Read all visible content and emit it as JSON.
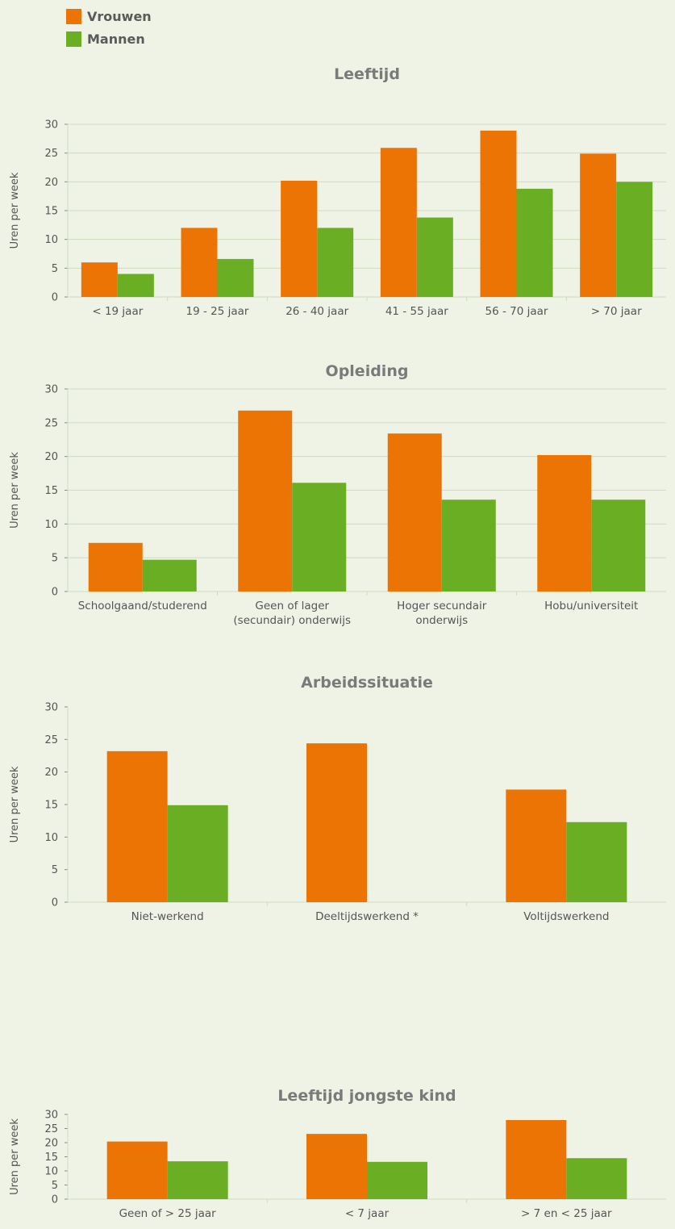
{
  "legend": {
    "items": [
      {
        "label": "Vrouwen",
        "color": "#ec7404"
      },
      {
        "label": "Mannen",
        "color": "#6aaf23"
      }
    ]
  },
  "colors": {
    "vrouwen": "#ec7404",
    "mannen": "#6aaf23",
    "grid": "#cfdcc0",
    "axis": "#8a8a8a"
  },
  "chart_data": [
    {
      "type": "bar",
      "title": "Leeftijd",
      "ylabel": "Uren per week",
      "ylim": [
        0,
        30
      ],
      "yticks": [
        0,
        5,
        10,
        15,
        20,
        25,
        30
      ],
      "grid": true,
      "categories": [
        [
          "< 19 jaar"
        ],
        [
          "19 - 25 jaar"
        ],
        [
          "26 - 40 jaar"
        ],
        [
          "41 - 55 jaar"
        ],
        [
          "56 - 70 jaar"
        ],
        [
          "> 70 jaar"
        ]
      ],
      "series": [
        {
          "name": "Vrouwen",
          "values": [
            6,
            12,
            20.2,
            25.9,
            28.9,
            24.9
          ]
        },
        {
          "name": "Mannen",
          "values": [
            4,
            6.6,
            12,
            13.8,
            18.8,
            20
          ]
        }
      ]
    },
    {
      "type": "bar",
      "title": "Opleiding",
      "ylabel": "Uren per week",
      "ylim": [
        0,
        30
      ],
      "yticks": [
        0,
        5,
        10,
        15,
        20,
        25,
        30
      ],
      "grid": true,
      "categories": [
        [
          "Schoolgaand/studerend"
        ],
        [
          "Geen of lager",
          "(secundair) onderwijs"
        ],
        [
          "Hoger secundair",
          "onderwijs"
        ],
        [
          "Hobu/universiteit"
        ]
      ],
      "series": [
        {
          "name": "Vrouwen",
          "values": [
            7.2,
            26.8,
            23.4,
            20.2
          ]
        },
        {
          "name": "Mannen",
          "values": [
            4.7,
            16.1,
            13.6,
            13.6
          ]
        }
      ]
    },
    {
      "type": "bar",
      "title": "Arbeidssituatie",
      "ylabel": "Uren per week",
      "ylim": [
        0,
        30
      ],
      "yticks": [
        0,
        5,
        10,
        15,
        20,
        25,
        30
      ],
      "grid": false,
      "categories": [
        [
          "Niet-werkend"
        ],
        [
          "Deeltijdswerkend *"
        ],
        [
          "Voltijdswerkend"
        ]
      ],
      "series": [
        {
          "name": "Vrouwen",
          "values": [
            23.2,
            24.4,
            17.3
          ]
        },
        {
          "name": "Mannen",
          "values": [
            14.9,
            null,
            12.3
          ]
        }
      ]
    },
    {
      "type": "bar",
      "title": "Leeftijd jongste kind",
      "ylabel": "Uren per week",
      "ylim": [
        0,
        30
      ],
      "yticks": [
        0,
        5,
        10,
        15,
        20,
        25,
        30
      ],
      "grid": false,
      "categories": [
        [
          "Geen of > 25 jaar"
        ],
        [
          "< 7 jaar"
        ],
        [
          "> 7 en < 25 jaar"
        ]
      ],
      "series": [
        {
          "name": "Vrouwen",
          "values": [
            20.4,
            23.1,
            28
          ]
        },
        {
          "name": "Mannen",
          "values": [
            13.4,
            13.2,
            14.5
          ]
        }
      ]
    }
  ]
}
